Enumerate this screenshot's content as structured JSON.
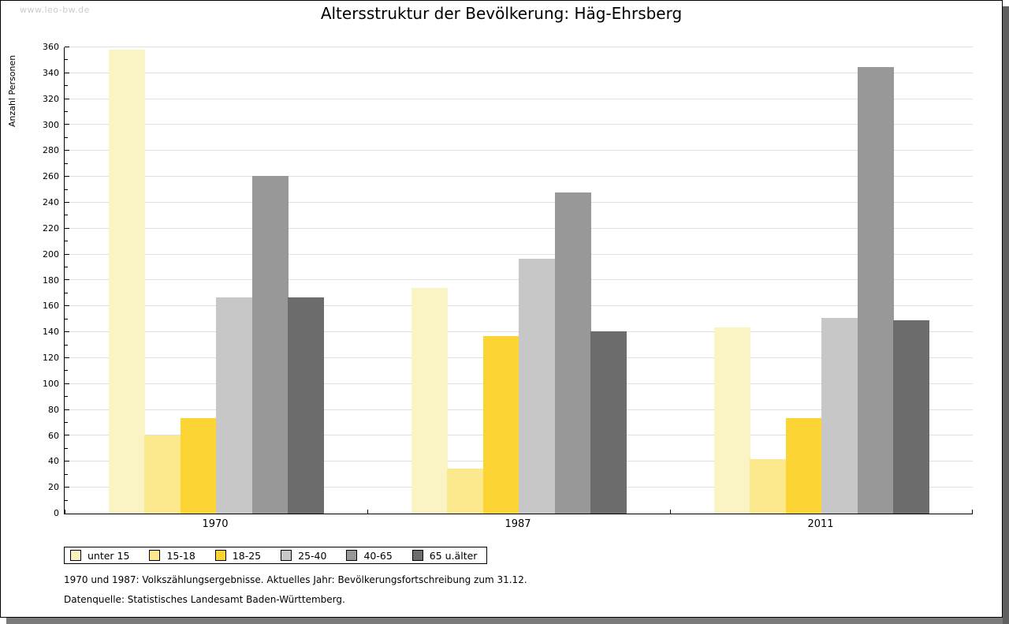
{
  "watermark": "www.leo-bw.de",
  "title": "Altersstruktur der Bevölkerung: Häg-Ehrsberg",
  "chart_data": {
    "type": "bar",
    "title": "Altersstruktur der Bevölkerung: Häg-Ehrsberg",
    "xlabel": "",
    "ylabel": "Anzahl Personen",
    "ylim": [
      0,
      360
    ],
    "ytick_step": 20,
    "ytick_minor_step": 10,
    "grid": true,
    "gridline_color": "#e0e0e0",
    "legend_position": "bottom",
    "categories": [
      "1970",
      "1987",
      "2011"
    ],
    "series": [
      {
        "name": "unter 15",
        "color": "#faf3c3",
        "values": [
          358,
          174,
          144
        ]
      },
      {
        "name": "15-18",
        "color": "#fce98d",
        "values": [
          60,
          35,
          42
        ]
      },
      {
        "name": "18-25",
        "color": "#fcd433",
        "values": [
          74,
          137,
          74
        ]
      },
      {
        "name": "25-40",
        "color": "#c7c7c7",
        "values": [
          167,
          197,
          151
        ]
      },
      {
        "name": "40-65",
        "color": "#989898",
        "values": [
          261,
          248,
          345
        ]
      },
      {
        "name": "65 u.älter",
        "color": "#6c6c6c",
        "values": [
          167,
          141,
          149
        ]
      }
    ]
  },
  "footnotes": [
    "1970 und 1987: Volkszählungsergebnisse. Aktuelles Jahr: Bevölkerungsfortschreibung zum 31.12.",
    "Datenquelle: Statistisches Landesamt Baden-Württemberg."
  ]
}
